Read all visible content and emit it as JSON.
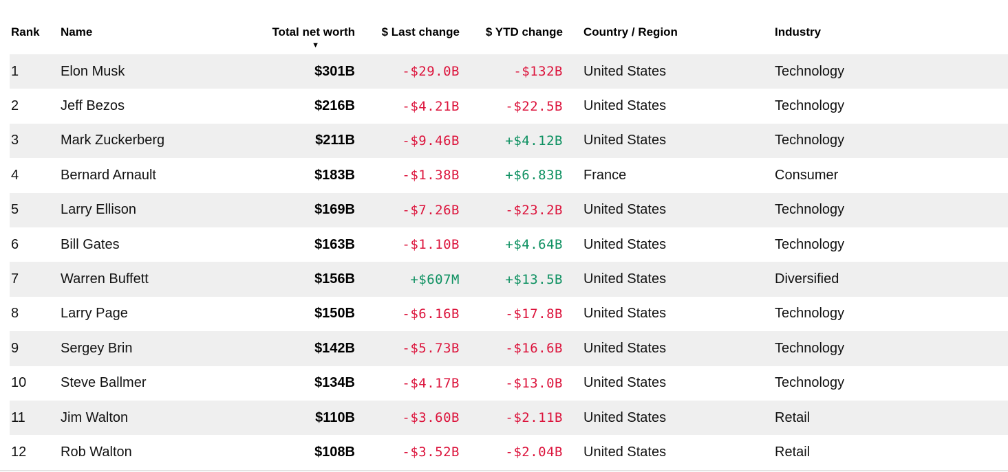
{
  "table": {
    "columns": [
      {
        "key": "rank",
        "label": "Rank",
        "align": "left",
        "sorted": false
      },
      {
        "key": "name",
        "label": "Name",
        "align": "left",
        "sorted": false
      },
      {
        "key": "net_worth",
        "label": "Total net worth",
        "align": "right",
        "sorted": true
      },
      {
        "key": "last_change",
        "label": "$ Last change",
        "align": "right",
        "sorted": false
      },
      {
        "key": "ytd_change",
        "label": "$ YTD change",
        "align": "right",
        "sorted": false
      },
      {
        "key": "country",
        "label": "Country / Region",
        "align": "left",
        "sorted": false
      },
      {
        "key": "industry",
        "label": "Industry",
        "align": "left",
        "sorted": false
      }
    ],
    "sort_icon": "▼",
    "sort_direction": "descending",
    "rows": [
      {
        "rank": "1",
        "name": "Elon Musk",
        "net_worth": "$301B",
        "last_change": "-$29.0B",
        "ytd_change": "-$132B",
        "country": "United States",
        "industry": "Technology"
      },
      {
        "rank": "2",
        "name": "Jeff Bezos",
        "net_worth": "$216B",
        "last_change": "-$4.21B",
        "ytd_change": "-$22.5B",
        "country": "United States",
        "industry": "Technology"
      },
      {
        "rank": "3",
        "name": "Mark Zuckerberg",
        "net_worth": "$211B",
        "last_change": "-$9.46B",
        "ytd_change": "+$4.12B",
        "country": "United States",
        "industry": "Technology"
      },
      {
        "rank": "4",
        "name": "Bernard Arnault",
        "net_worth": "$183B",
        "last_change": "-$1.38B",
        "ytd_change": "+$6.83B",
        "country": "France",
        "industry": "Consumer"
      },
      {
        "rank": "5",
        "name": "Larry Ellison",
        "net_worth": "$169B",
        "last_change": "-$7.26B",
        "ytd_change": "-$23.2B",
        "country": "United States",
        "industry": "Technology"
      },
      {
        "rank": "6",
        "name": "Bill Gates",
        "net_worth": "$163B",
        "last_change": "-$1.10B",
        "ytd_change": "+$4.64B",
        "country": "United States",
        "industry": "Technology"
      },
      {
        "rank": "7",
        "name": "Warren Buffett",
        "net_worth": "$156B",
        "last_change": "+$607M",
        "ytd_change": "+$13.5B",
        "country": "United States",
        "industry": "Diversified"
      },
      {
        "rank": "8",
        "name": "Larry Page",
        "net_worth": "$150B",
        "last_change": "-$6.16B",
        "ytd_change": "-$17.8B",
        "country": "United States",
        "industry": "Technology"
      },
      {
        "rank": "9",
        "name": "Sergey Brin",
        "net_worth": "$142B",
        "last_change": "-$5.73B",
        "ytd_change": "-$16.6B",
        "country": "United States",
        "industry": "Technology"
      },
      {
        "rank": "10",
        "name": "Steve Ballmer",
        "net_worth": "$134B",
        "last_change": "-$4.17B",
        "ytd_change": "-$13.0B",
        "country": "United States",
        "industry": "Technology"
      },
      {
        "rank": "11",
        "name": "Jim Walton",
        "net_worth": "$110B",
        "last_change": "-$3.60B",
        "ytd_change": "-$2.11B",
        "country": "United States",
        "industry": "Retail"
      },
      {
        "rank": "12",
        "name": "Rob Walton",
        "net_worth": "$108B",
        "last_change": "-$3.52B",
        "ytd_change": "-$2.04B",
        "country": "United States",
        "industry": "Retail"
      }
    ]
  },
  "colors": {
    "negative": "#dc143c",
    "positive": "#0f9162",
    "row_stripe": "#efefef",
    "header_text": "#000000",
    "body_text": "#121212"
  }
}
